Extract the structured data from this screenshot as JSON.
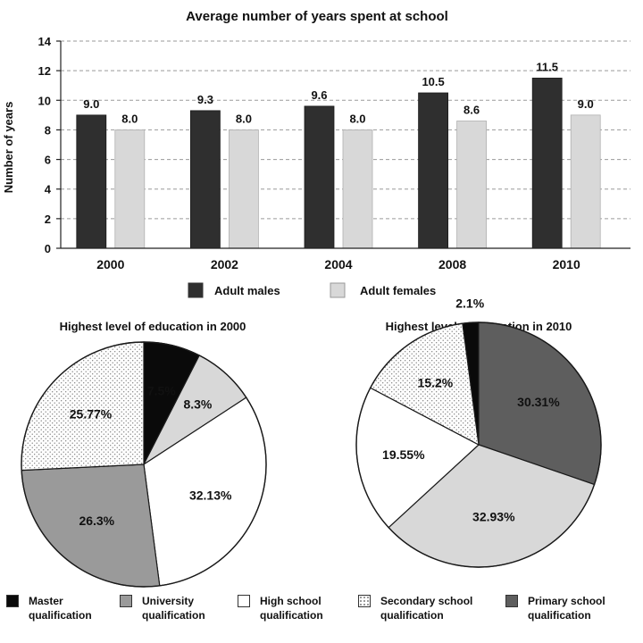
{
  "colors": {
    "dark": "#2f2f2f",
    "medium": "#5e5e5e",
    "pie_medium": "#9a9a9a",
    "light": "#d8d8d8",
    "white": "#ffffff",
    "black": "#0a0a0a"
  },
  "chart_data": [
    {
      "type": "bar",
      "title": "Average number of years spent at school",
      "ylabel": "Number of years",
      "xlabel": "",
      "categories": [
        "2000",
        "2002",
        "2004",
        "2008",
        "2010"
      ],
      "ylim": [
        0,
        14
      ],
      "yticks": [
        0,
        2,
        4,
        6,
        8,
        10,
        12,
        14
      ],
      "grid": "horizontal dashed",
      "legend_position": "bottom",
      "series": [
        {
          "name": "Adult males",
          "values": [
            9.0,
            9.3,
            9.6,
            10.5,
            11.5
          ],
          "labels": [
            "9.0",
            "9.3",
            "9.6",
            "10.5",
            "11.5"
          ],
          "color": "dark"
        },
        {
          "name": "Adult females",
          "values": [
            8.0,
            8.0,
            8.0,
            8.6,
            9.0
          ],
          "labels": [
            "8.0",
            "8.0",
            "8.0",
            "8.6",
            "9.0"
          ],
          "color": "light"
        }
      ]
    },
    {
      "type": "pie",
      "title": "Highest level of education in 2000",
      "slices": [
        {
          "name": "Master qualification",
          "value": 7.5,
          "label": "7.5%",
          "fill": "black"
        },
        {
          "name": "High school qualification",
          "value": 8.3,
          "label": "8.3%",
          "fill": "light"
        },
        {
          "name": "High school qualification",
          "value": 32.13,
          "label": "32.13%",
          "fill": "white"
        },
        {
          "name": "University qualification",
          "value": 26.3,
          "label": "26.3%",
          "fill": "pie_medium"
        },
        {
          "name": "Secondary school qualification",
          "value": 25.77,
          "label": "25.77%",
          "fill": "dotted"
        }
      ]
    },
    {
      "type": "pie",
      "title": "Highest level of education in 2010",
      "slices": [
        {
          "name": "Master qualification",
          "value": 2.1,
          "label": "2.1%",
          "fill": "black"
        },
        {
          "name": "Primary school qualification",
          "value": 30.31,
          "label": "30.31%",
          "fill": "medium"
        },
        {
          "name": "University qualification",
          "value": 32.93,
          "label": "32.93%",
          "fill": "light"
        },
        {
          "name": "High school qualification",
          "value": 19.55,
          "label": "19.55%",
          "fill": "white"
        },
        {
          "name": "Secondary school qualification",
          "value": 15.2,
          "label": "15.2%",
          "fill": "dotted"
        }
      ]
    }
  ],
  "legend": [
    {
      "lines": [
        "Master",
        "qualification"
      ],
      "fill": "black"
    },
    {
      "lines": [
        "University",
        "qualification"
      ],
      "fill": "pie_medium"
    },
    {
      "lines": [
        "High school",
        "qualification"
      ],
      "fill": "white"
    },
    {
      "lines": [
        "Secondary school",
        "qualification"
      ],
      "fill": "dotted"
    },
    {
      "lines": [
        "Primary school",
        "qualification"
      ],
      "fill": "medium"
    }
  ]
}
